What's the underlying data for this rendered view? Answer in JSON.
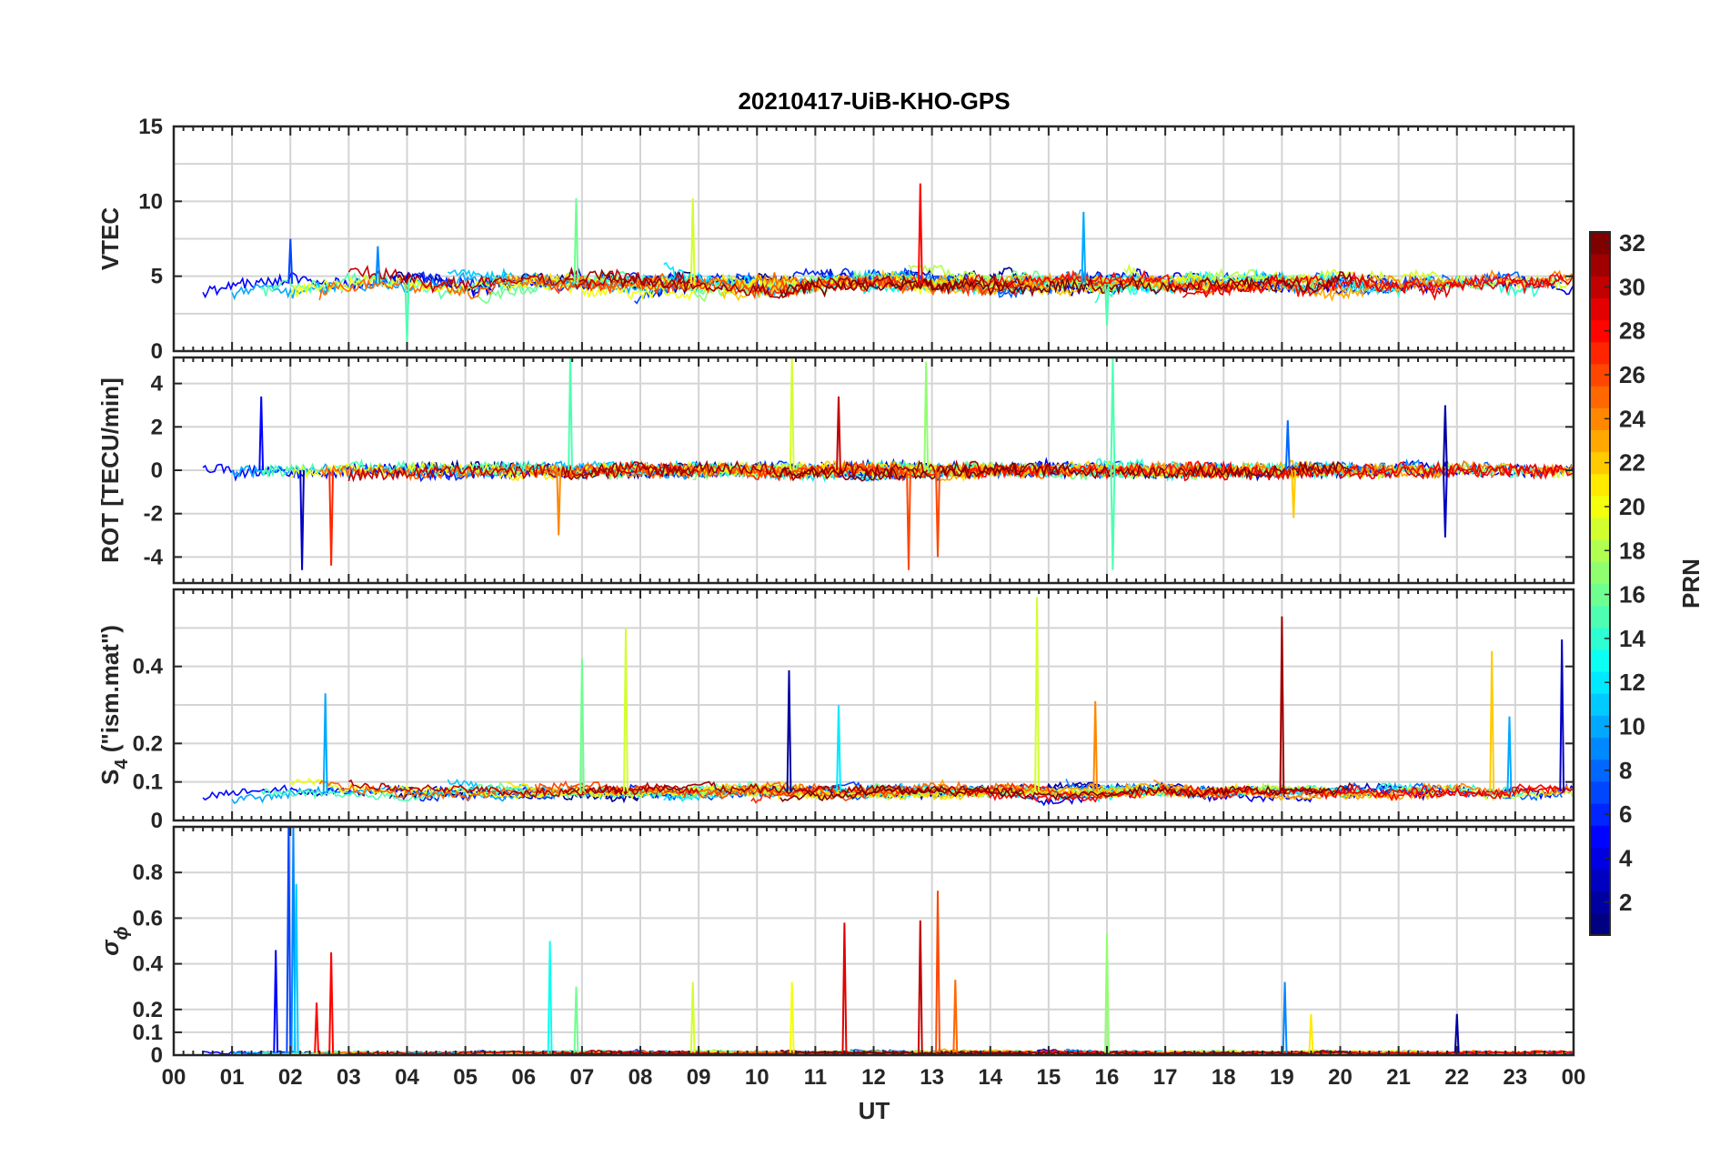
{
  "chart_data": {
    "type": "line",
    "title": "20210417-UiB-KHO-GPS",
    "xlabel": "UT",
    "x_tick_labels": [
      "00",
      "01",
      "02",
      "03",
      "04",
      "05",
      "06",
      "07",
      "08",
      "09",
      "10",
      "11",
      "12",
      "13",
      "14",
      "15",
      "16",
      "17",
      "18",
      "19",
      "20",
      "21",
      "22",
      "23",
      "00"
    ],
    "xlim": [
      0,
      24
    ],
    "grid": true,
    "colorbar": {
      "label": "PRN",
      "range": [
        1,
        32
      ],
      "ticks": [
        "2",
        "4",
        "6",
        "8",
        "10",
        "12",
        "14",
        "16",
        "18",
        "20",
        "22",
        "24",
        "26",
        "28",
        "30",
        "32"
      ],
      "colormap": "jet"
    },
    "panels": [
      {
        "id": "vtec",
        "ylabel": "VTEC",
        "ylim": [
          0,
          15
        ],
        "y_ticks": [
          "0",
          "5",
          "10",
          "15"
        ],
        "y_tick_values": [
          0,
          5,
          10,
          15
        ],
        "minor_grid": [
          2.5,
          7.5,
          12.5
        ],
        "baseline": 4.5,
        "noise": 1.2,
        "peaks": [
          {
            "x": 2.0,
            "y": 7.5,
            "prn": 7
          },
          {
            "x": 3.5,
            "y": 7.0,
            "prn": 9
          },
          {
            "x": 6.9,
            "y": 10.2,
            "prn": 16
          },
          {
            "x": 8.9,
            "y": 10.2,
            "prn": 19
          },
          {
            "x": 12.8,
            "y": 11.2,
            "prn": 28
          },
          {
            "x": 15.6,
            "y": 9.3,
            "prn": 10
          },
          {
            "x": 4.0,
            "y": 0.5,
            "prn": 15
          },
          {
            "x": 16.0,
            "y": 1.7,
            "prn": 15
          }
        ]
      },
      {
        "id": "rot",
        "ylabel": "ROT [TECU/min]",
        "ylim": [
          -5.2,
          5.2
        ],
        "y_ticks": [
          "-4",
          "-2",
          "0",
          "2",
          "4"
        ],
        "y_tick_values": [
          -4,
          -2,
          0,
          2,
          4
        ],
        "baseline": 0,
        "noise": 0.35,
        "peaks": [
          {
            "x": 1.5,
            "y": 3.4,
            "prn": 5
          },
          {
            "x": 2.2,
            "y": -4.6,
            "prn": 3
          },
          {
            "x": 2.7,
            "y": -4.4,
            "prn": 27
          },
          {
            "x": 6.8,
            "y": 5.2,
            "prn": 15
          },
          {
            "x": 6.6,
            "y": -3.0,
            "prn": 24
          },
          {
            "x": 10.6,
            "y": 5.2,
            "prn": 19
          },
          {
            "x": 11.4,
            "y": 3.4,
            "prn": 30
          },
          {
            "x": 12.6,
            "y": -4.6,
            "prn": 26
          },
          {
            "x": 12.9,
            "y": 5.0,
            "prn": 17
          },
          {
            "x": 13.1,
            "y": -4.0,
            "prn": 26
          },
          {
            "x": 16.1,
            "y": 5.2,
            "prn": 15
          },
          {
            "x": 16.1,
            "y": -4.6,
            "prn": 15
          },
          {
            "x": 19.1,
            "y": 2.3,
            "prn": 8
          },
          {
            "x": 19.2,
            "y": -2.2,
            "prn": 22
          },
          {
            "x": 21.8,
            "y": 3.0,
            "prn": 2
          },
          {
            "x": 21.8,
            "y": -3.1,
            "prn": 3
          }
        ]
      },
      {
        "id": "s4",
        "ylabel": "S4 (\"ism.mat\")",
        "ylabel_parts": [
          "S",
          "4",
          " (\"ism.mat\")"
        ],
        "ylim": [
          0,
          0.6
        ],
        "y_ticks": [
          "0",
          "0.1",
          "0.2",
          "0.4"
        ],
        "y_tick_values": [
          0,
          0.1,
          0.2,
          0.4
        ],
        "minor_grid": [
          0.3,
          0.5
        ],
        "baseline": 0.075,
        "noise": 0.03,
        "peaks": [
          {
            "x": 2.6,
            "y": 0.33,
            "prn": 10
          },
          {
            "x": 7.0,
            "y": 0.42,
            "prn": 16
          },
          {
            "x": 7.75,
            "y": 0.5,
            "prn": 19
          },
          {
            "x": 10.55,
            "y": 0.39,
            "prn": 2
          },
          {
            "x": 11.4,
            "y": 0.3,
            "prn": 12
          },
          {
            "x": 14.8,
            "y": 0.58,
            "prn": 19
          },
          {
            "x": 15.8,
            "y": 0.31,
            "prn": 24
          },
          {
            "x": 19.0,
            "y": 0.53,
            "prn": 31
          },
          {
            "x": 22.6,
            "y": 0.44,
            "prn": 22
          },
          {
            "x": 22.9,
            "y": 0.27,
            "prn": 10
          },
          {
            "x": 23.8,
            "y": 0.47,
            "prn": 3
          }
        ]
      },
      {
        "id": "sigma_phi",
        "ylabel": "σϕ",
        "ylabel_parts": [
          "σ",
          "ϕ"
        ],
        "ylim": [
          0,
          1
        ],
        "y_ticks": [
          "0",
          "0.1",
          "0.2",
          "0.4",
          "0.6",
          "0.8"
        ],
        "y_tick_values": [
          0,
          0.1,
          0.2,
          0.4,
          0.6,
          0.8
        ],
        "minor_grid": [
          1.0
        ],
        "baseline": 0.01,
        "noise": 0.015,
        "peaks": [
          {
            "x": 1.75,
            "y": 0.46,
            "prn": 5
          },
          {
            "x": 1.97,
            "y": 1.0,
            "prn": 7
          },
          {
            "x": 2.05,
            "y": 1.0,
            "prn": 9
          },
          {
            "x": 2.1,
            "y": 0.75,
            "prn": 11
          },
          {
            "x": 2.45,
            "y": 0.23,
            "prn": 28
          },
          {
            "x": 2.7,
            "y": 0.45,
            "prn": 28
          },
          {
            "x": 6.45,
            "y": 0.5,
            "prn": 13
          },
          {
            "x": 6.9,
            "y": 0.3,
            "prn": 16
          },
          {
            "x": 8.9,
            "y": 0.32,
            "prn": 19
          },
          {
            "x": 10.6,
            "y": 0.32,
            "prn": 20
          },
          {
            "x": 11.5,
            "y": 0.58,
            "prn": 29
          },
          {
            "x": 12.8,
            "y": 0.59,
            "prn": 30
          },
          {
            "x": 13.1,
            "y": 0.72,
            "prn": 26
          },
          {
            "x": 13.4,
            "y": 0.33,
            "prn": 25
          },
          {
            "x": 16.0,
            "y": 0.53,
            "prn": 17
          },
          {
            "x": 19.05,
            "y": 0.32,
            "prn": 9
          },
          {
            "x": 19.5,
            "y": 0.18,
            "prn": 21
          },
          {
            "x": 22.0,
            "y": 0.18,
            "prn": 2
          }
        ]
      }
    ]
  }
}
